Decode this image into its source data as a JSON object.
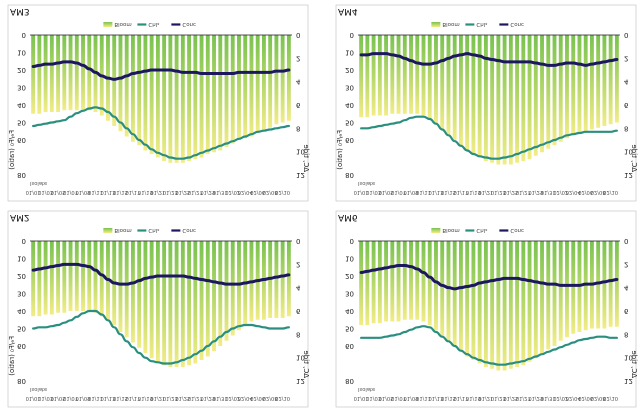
{
  "colors": {
    "bar_top": "#f2ec86",
    "bar_bottom": "#79c24f",
    "line_chl": "#2a8f7f",
    "line_conc": "#1d1760",
    "baseline": "#1a1a1a",
    "border": "#bdbdbd"
  },
  "chart_data": [
    {
      "type": "bar",
      "panel_label": "AM2",
      "title": "AM2",
      "xlabel": "Isolate",
      "ylabel_left": "Fₑ/F₀ (ratio)",
      "ylabel_right": "ΔC, tide",
      "y_ticks_left": [
        "0",
        "10",
        "20",
        "30",
        "40",
        "50",
        "60",
        "80"
      ],
      "y_ticks_right": [
        "0",
        "2",
        "4",
        "6",
        "8",
        "10",
        "12"
      ],
      "categories": [
        "01/01",
        "01/02",
        "01/03",
        "01/04",
        "01/05",
        "01/06",
        "01/07",
        "01/08",
        "01/09",
        "01/10",
        "01/11",
        "01/12",
        "01/13",
        "01/14",
        "01/15",
        "01/16",
        "01/17",
        "01/18",
        "01/19",
        "01/20",
        "01/21",
        "01/22",
        "01/23",
        "01/24",
        "01/25",
        "01/26",
        "01/27",
        "01/28",
        "01/29",
        "01/30",
        "01/31",
        "02/01",
        "02/02",
        "02/03",
        "02/04",
        "02/05",
        "02/06",
        "02/07",
        "02/08",
        "02/09",
        "02/10",
        "02/11"
      ],
      "legend": [
        "Bloom",
        "Chlₐ",
        "Conc"
      ],
      "series": [
        {
          "name": "Bloom",
          "kind": "bar",
          "values": [
            43,
            43,
            42,
            42,
            41,
            41,
            40,
            40,
            40,
            40,
            41,
            43,
            45,
            48,
            52,
            55,
            58,
            61,
            64,
            67,
            69,
            71,
            72,
            72,
            72,
            71,
            70,
            68,
            66,
            63,
            60,
            57,
            54,
            51,
            48,
            46,
            45,
            45,
            44,
            44,
            44,
            43
          ]
        },
        {
          "name": "Chlₐ",
          "kind": "line",
          "values": [
            7.5,
            7.4,
            7.4,
            7.3,
            7.2,
            7.0,
            6.8,
            6.5,
            6.2,
            6.0,
            6.0,
            6.3,
            6.8,
            7.4,
            8.0,
            8.6,
            9.1,
            9.6,
            10.0,
            10.3,
            10.4,
            10.5,
            10.5,
            10.4,
            10.2,
            10.0,
            9.7,
            9.4,
            9.0,
            8.6,
            8.2,
            7.8,
            7.5,
            7.3,
            7.2,
            7.2,
            7.3,
            7.4,
            7.5,
            7.5,
            7.5,
            7.4
          ]
        },
        {
          "name": "Conc",
          "kind": "line",
          "values": [
            2.5,
            2.4,
            2.3,
            2.2,
            2.1,
            2.0,
            2.0,
            2.0,
            2.1,
            2.2,
            2.5,
            2.9,
            3.3,
            3.6,
            3.7,
            3.7,
            3.6,
            3.4,
            3.2,
            3.1,
            3.0,
            3.0,
            3.0,
            3.0,
            3.0,
            3.1,
            3.2,
            3.3,
            3.4,
            3.5,
            3.6,
            3.7,
            3.7,
            3.7,
            3.6,
            3.5,
            3.4,
            3.3,
            3.2,
            3.1,
            3.0,
            2.9
          ]
        }
      ],
      "ylim_left": [
        0,
        80
      ],
      "ylim_right": [
        0,
        12
      ]
    },
    {
      "type": "bar",
      "panel_label": "AM6",
      "title": "AM6",
      "xlabel": "Isolate",
      "ylabel_left": "",
      "ylabel_right": "ΔC, tide",
      "y_ticks_left": [
        "0",
        "10",
        "20",
        "30",
        "40",
        "50",
        "60",
        "80"
      ],
      "y_ticks_right": [
        "0",
        "2",
        "4",
        "6",
        "8",
        "10",
        "12"
      ],
      "categories": [
        "01/01",
        "01/02",
        "01/03",
        "01/04",
        "01/05",
        "01/06",
        "01/07",
        "01/08",
        "01/09",
        "01/10",
        "01/11",
        "01/12",
        "01/13",
        "01/14",
        "01/15",
        "01/16",
        "01/17",
        "01/18",
        "01/19",
        "01/20",
        "01/21",
        "01/22",
        "01/23",
        "01/24",
        "01/25",
        "01/26",
        "01/27",
        "01/28",
        "01/29",
        "01/30",
        "01/31",
        "02/01",
        "02/02",
        "02/03",
        "02/04",
        "02/05",
        "02/06",
        "02/07",
        "02/08",
        "02/09",
        "02/10",
        "02/11"
      ],
      "legend": [
        "Bloom",
        "Chlₐ",
        "Conc"
      ],
      "series": [
        {
          "name": "Bloom",
          "kind": "bar",
          "values": [
            48,
            48,
            47,
            47,
            46,
            46,
            46,
            45,
            45,
            45,
            46,
            48,
            51,
            54,
            57,
            60,
            63,
            66,
            68,
            70,
            72,
            73,
            74,
            74,
            73,
            72,
            71,
            69,
            67,
            65,
            62,
            60,
            57,
            55,
            53,
            52,
            51,
            50,
            50,
            50,
            49,
            49
          ]
        },
        {
          "name": "Chlₐ",
          "kind": "line",
          "values": [
            8.3,
            8.3,
            8.3,
            8.3,
            8.2,
            8.1,
            8.0,
            7.8,
            7.6,
            7.4,
            7.3,
            7.4,
            7.8,
            8.2,
            8.6,
            9.0,
            9.4,
            9.7,
            10.0,
            10.2,
            10.4,
            10.5,
            10.6,
            10.6,
            10.5,
            10.4,
            10.3,
            10.1,
            9.9,
            9.7,
            9.5,
            9.3,
            9.1,
            8.9,
            8.7,
            8.5,
            8.4,
            8.3,
            8.2,
            8.2,
            8.3,
            8.3
          ]
        },
        {
          "name": "Conc",
          "kind": "line",
          "values": [
            2.7,
            2.6,
            2.5,
            2.4,
            2.3,
            2.2,
            2.1,
            2.1,
            2.2,
            2.4,
            2.7,
            3.1,
            3.5,
            3.8,
            4.0,
            4.1,
            4.0,
            3.9,
            3.8,
            3.6,
            3.5,
            3.4,
            3.3,
            3.2,
            3.2,
            3.2,
            3.3,
            3.4,
            3.5,
            3.6,
            3.7,
            3.7,
            3.8,
            3.8,
            3.8,
            3.8,
            3.7,
            3.7,
            3.6,
            3.5,
            3.4,
            3.3
          ]
        }
      ],
      "ylim_left": [
        0,
        80
      ],
      "ylim_right": [
        0,
        12
      ]
    },
    {
      "type": "bar",
      "panel_label": "AM3",
      "title": "AM3",
      "xlabel": "Isolate",
      "ylabel_left": "Fₑ/F₀ (ratio)",
      "ylabel_right": "ΔC, tide",
      "y_ticks_left": [
        "0",
        "10",
        "20",
        "30",
        "40",
        "50",
        "60",
        "80"
      ],
      "y_ticks_right": [
        "0",
        "2",
        "4",
        "6",
        "8",
        "10",
        "12"
      ],
      "categories": [
        "01/01",
        "01/02",
        "01/03",
        "01/04",
        "01/05",
        "01/06",
        "01/07",
        "01/08",
        "01/09",
        "01/10",
        "01/11",
        "01/12",
        "01/13",
        "01/14",
        "01/15",
        "01/16",
        "01/17",
        "01/18",
        "01/19",
        "01/20",
        "01/21",
        "01/22",
        "01/23",
        "01/24",
        "01/25",
        "01/26",
        "01/27",
        "01/28",
        "01/29",
        "01/30",
        "01/31",
        "02/01",
        "02/02",
        "02/03",
        "02/04",
        "02/05",
        "02/06",
        "02/07",
        "02/08",
        "02/09",
        "02/10",
        "02/11"
      ],
      "legend": [
        "Bloom",
        "Chlₐ",
        "Conc"
      ],
      "series": [
        {
          "name": "Bloom",
          "kind": "bar",
          "values": [
            45,
            45,
            44,
            44,
            44,
            43,
            43,
            43,
            43,
            43,
            44,
            46,
            49,
            52,
            55,
            58,
            61,
            63,
            66,
            68,
            70,
            72,
            73,
            73,
            73,
            72,
            71,
            70,
            68,
            67,
            66,
            64,
            62,
            60,
            59,
            58,
            56,
            55,
            53,
            51,
            50,
            49
          ]
        },
        {
          "name": "Chlₐ",
          "kind": "line",
          "values": [
            7.8,
            7.7,
            7.6,
            7.5,
            7.4,
            7.3,
            7.0,
            6.7,
            6.5,
            6.3,
            6.2,
            6.3,
            6.6,
            7.0,
            7.5,
            8.0,
            8.5,
            9.0,
            9.4,
            9.8,
            10.1,
            10.3,
            10.5,
            10.6,
            10.6,
            10.5,
            10.3,
            10.1,
            9.9,
            9.7,
            9.5,
            9.3,
            9.1,
            8.9,
            8.7,
            8.5,
            8.3,
            8.2,
            8.1,
            8.0,
            7.9,
            7.8
          ]
        },
        {
          "name": "Conc",
          "kind": "line",
          "values": [
            2.7,
            2.6,
            2.5,
            2.5,
            2.4,
            2.3,
            2.3,
            2.4,
            2.6,
            2.9,
            3.2,
            3.5,
            3.7,
            3.8,
            3.7,
            3.5,
            3.3,
            3.2,
            3.1,
            3.0,
            3.0,
            3.0,
            3.0,
            3.1,
            3.2,
            3.2,
            3.2,
            3.3,
            3.3,
            3.3,
            3.3,
            3.3,
            3.3,
            3.2,
            3.2,
            3.2,
            3.2,
            3.2,
            3.2,
            3.1,
            3.1,
            3.0
          ]
        }
      ],
      "ylim_left": [
        0,
        80
      ],
      "ylim_right": [
        0,
        12
      ]
    },
    {
      "type": "bar",
      "panel_label": "AM4",
      "title": "AM4",
      "xlabel": "Isolate",
      "ylabel_left": "Fₑ/F₀ (ratio)",
      "ylabel_right": "ΔC, tide",
      "y_ticks_left": [
        "0",
        "10",
        "20",
        "30",
        "40",
        "50",
        "60",
        "80"
      ],
      "y_ticks_right": [
        "0",
        "2",
        "4",
        "6",
        "8",
        "10",
        "12"
      ],
      "categories": [
        "01/01",
        "01/02",
        "01/03",
        "01/04",
        "01/05",
        "01/06",
        "01/07",
        "01/08",
        "01/09",
        "01/10",
        "01/11",
        "01/12",
        "01/13",
        "01/14",
        "01/15",
        "01/16",
        "01/17",
        "01/18",
        "01/19",
        "01/20",
        "01/21",
        "01/22",
        "01/23",
        "01/24",
        "01/25",
        "01/26",
        "01/27",
        "01/28",
        "01/29",
        "01/30",
        "01/31",
        "02/01",
        "02/02",
        "02/03",
        "02/04",
        "02/05",
        "02/06",
        "02/07",
        "02/08",
        "02/09",
        "02/10",
        "02/11"
      ],
      "legend": [
        "Bloom",
        "Chlₐ",
        "Conc"
      ],
      "series": [
        {
          "name": "Bloom",
          "kind": "bar",
          "values": [
            47,
            47,
            46,
            46,
            46,
            45,
            45,
            45,
            45,
            45,
            46,
            48,
            51,
            54,
            57,
            60,
            63,
            66,
            68,
            70,
            72,
            73,
            74,
            74,
            74,
            73,
            72,
            71,
            69,
            67,
            65,
            63,
            61,
            59,
            57,
            56,
            55,
            54,
            53,
            52,
            51,
            50
          ]
        },
        {
          "name": "Chlₐ",
          "kind": "line",
          "values": [
            8.0,
            8.0,
            7.9,
            7.8,
            7.7,
            7.6,
            7.5,
            7.3,
            7.1,
            7.0,
            7.0,
            7.2,
            7.6,
            8.1,
            8.6,
            9.1,
            9.5,
            9.9,
            10.2,
            10.4,
            10.5,
            10.6,
            10.6,
            10.5,
            10.4,
            10.2,
            10.0,
            9.8,
            9.6,
            9.4,
            9.2,
            9.0,
            8.8,
            8.6,
            8.5,
            8.4,
            8.3,
            8.3,
            8.3,
            8.3,
            8.3,
            8.2
          ]
        },
        {
          "name": "Conc",
          "kind": "line",
          "values": [
            1.7,
            1.7,
            1.6,
            1.6,
            1.6,
            1.7,
            1.8,
            2.0,
            2.2,
            2.4,
            2.5,
            2.5,
            2.4,
            2.2,
            2.0,
            1.8,
            1.7,
            1.6,
            1.7,
            1.8,
            2.0,
            2.1,
            2.2,
            2.3,
            2.3,
            2.3,
            2.3,
            2.3,
            2.4,
            2.5,
            2.6,
            2.6,
            2.5,
            2.4,
            2.4,
            2.5,
            2.6,
            2.5,
            2.4,
            2.3,
            2.2,
            2.1
          ]
        }
      ],
      "ylim_left": [
        0,
        80
      ],
      "ylim_right": [
        0,
        12
      ]
    }
  ]
}
